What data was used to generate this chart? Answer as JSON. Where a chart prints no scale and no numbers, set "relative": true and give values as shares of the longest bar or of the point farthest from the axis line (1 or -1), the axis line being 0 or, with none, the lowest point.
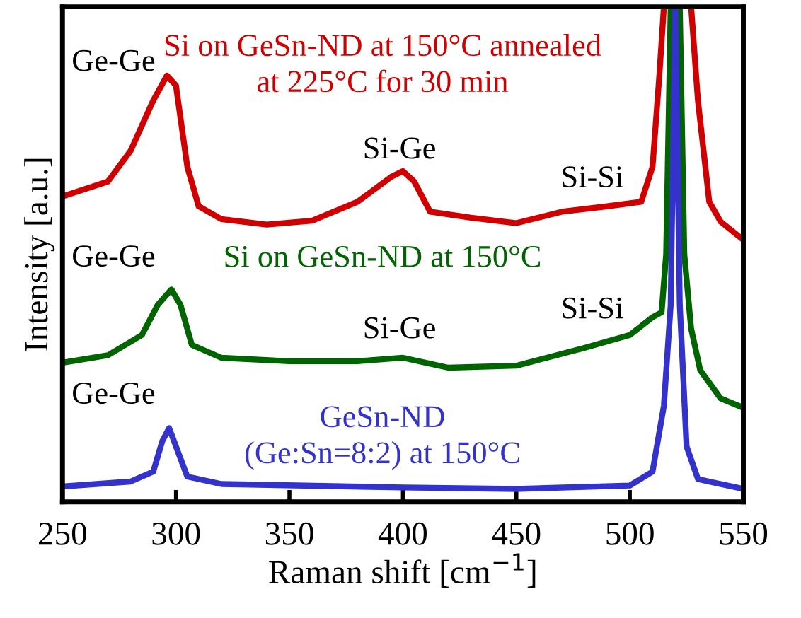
{
  "chart_data": {
    "type": "line",
    "relative": true,
    "xlabel": "Raman shift [cm$^{−1}$]",
    "ylabel": "Intensity [a.u.]",
    "xlim": [
      250,
      550
    ],
    "xticks": [
      250,
      300,
      350,
      400,
      450,
      500,
      550
    ],
    "grid": false,
    "legend": false,
    "marker": "none",
    "line_style": "solid",
    "series": [
      {
        "name": "Si on GeSn-ND at 150°C annealed\nat 225°C for 30 min",
        "color": "#d00000",
        "x": [
          250,
          270,
          280,
          290,
          296,
          300,
          305,
          310,
          320,
          340,
          360,
          380,
          395,
          400,
          405,
          412,
          430,
          450,
          470,
          490,
          505,
          510,
          513,
          515,
          520,
          527,
          530,
          535,
          540,
          550
        ],
        "values": [
          0.617,
          0.647,
          0.709,
          0.811,
          0.861,
          0.841,
          0.677,
          0.597,
          0.571,
          0.56,
          0.568,
          0.606,
          0.657,
          0.668,
          0.647,
          0.586,
          0.574,
          0.563,
          0.586,
          0.597,
          0.606,
          0.677,
          0.861,
          1.0,
          null,
          1.0,
          0.811,
          0.606,
          0.566,
          0.529
        ]
      },
      {
        "name": "Si on GeSn-ND at 150°C",
        "color": "#006400",
        "x": [
          250,
          270,
          285,
          292,
          298,
          302,
          307,
          320,
          350,
          380,
          400,
          420,
          450,
          480,
          500,
          510,
          514,
          516,
          518,
          522,
          524,
          527,
          531,
          540,
          550
        ],
        "values": [
          0.281,
          0.296,
          0.337,
          0.398,
          0.429,
          0.398,
          0.317,
          0.291,
          0.284,
          0.284,
          0.291,
          0.271,
          0.275,
          0.311,
          0.337,
          0.373,
          0.383,
          0.5,
          1.0,
          1.0,
          0.5,
          0.35,
          0.266,
          0.209,
          0.19
        ]
      },
      {
        "name": "GeSn-ND\n(Ge:Sn=8:2) at 150°C",
        "color": "#3333cc",
        "x": [
          250,
          280,
          290,
          294,
          297,
          300,
          305,
          320,
          400,
          450,
          500,
          510,
          515,
          518,
          520,
          522,
          525,
          530,
          550
        ],
        "values": [
          0.031,
          0.041,
          0.061,
          0.123,
          0.149,
          0.112,
          0.051,
          0.036,
          0.029,
          0.026,
          0.033,
          0.061,
          0.194,
          0.398,
          1.0,
          0.398,
          0.112,
          0.046,
          0.026
        ]
      }
    ],
    "annotations": [
      "Ge-Ge",
      "Si-Ge",
      "Si-Si",
      "Ge-Ge",
      "Si-Ge",
      "Si-Si",
      "Ge-Ge"
    ]
  }
}
